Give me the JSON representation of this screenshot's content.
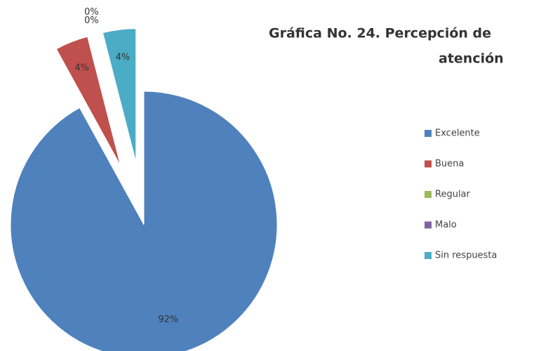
{
  "chart_data": {
    "type": "pie",
    "title": [
      "Gráfica No. 24. Percepción de",
      "atención"
    ],
    "categories": [
      "Excelente",
      "Buena",
      "Regular",
      "Malo",
      "Sin respuesta"
    ],
    "values": [
      92,
      4,
      0,
      0,
      4
    ],
    "value_labels": [
      "92%",
      "4%",
      "0%",
      "0%",
      "4%"
    ],
    "colors": [
      "#4f81bd",
      "#c0504d",
      "#9bbb59",
      "#8064a2",
      "#4bacc6"
    ],
    "legend": "right"
  }
}
